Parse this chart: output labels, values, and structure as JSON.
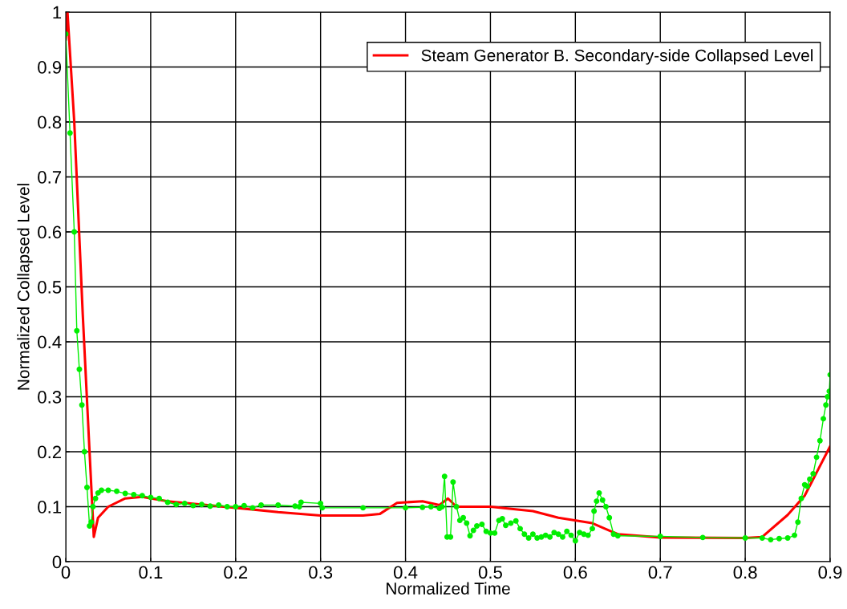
{
  "chart_data": {
    "type": "line",
    "xlabel": "Normalized Time",
    "ylabel": "Normalized Collapsed Level",
    "xlim": [
      0,
      0.9
    ],
    "ylim": [
      0,
      1
    ],
    "xticks": [
      0,
      0.1,
      0.2,
      0.3,
      0.4,
      0.5,
      0.6,
      0.7,
      0.8,
      0.9
    ],
    "yticks": [
      0,
      0.1,
      0.2,
      0.3,
      0.4,
      0.5,
      0.6,
      0.7,
      0.8,
      0.9,
      1
    ],
    "grid": true,
    "legend": "top right",
    "series": [
      {
        "name": "Steam Generator B. Secondary-side Collapsed Level",
        "color": "#ff0000",
        "marker": "none",
        "x": [
          0,
          0.002,
          0.01,
          0.02,
          0.028,
          0.033,
          0.038,
          0.05,
          0.07,
          0.09,
          0.12,
          0.2,
          0.25,
          0.3,
          0.35,
          0.37,
          0.39,
          0.42,
          0.44,
          0.45,
          0.46,
          0.5,
          0.55,
          0.58,
          0.62,
          0.65,
          0.7,
          0.8,
          0.82,
          0.85,
          0.87,
          0.9
        ],
        "values": [
          0.95,
          1.0,
          0.8,
          0.45,
          0.2,
          0.045,
          0.08,
          0.1,
          0.115,
          0.118,
          0.11,
          0.098,
          0.09,
          0.084,
          0.084,
          0.087,
          0.107,
          0.11,
          0.103,
          0.115,
          0.1,
          0.1,
          0.092,
          0.08,
          0.07,
          0.05,
          0.044,
          0.043,
          0.045,
          0.085,
          0.12,
          0.21
        ]
      },
      {
        "color": "#00ee00",
        "marker": "circle",
        "x": [
          0,
          0.005,
          0.01,
          0.013,
          0.016,
          0.019,
          0.022,
          0.025,
          0.028,
          0.03,
          0.032,
          0.035,
          0.038,
          0.042,
          0.05,
          0.06,
          0.07,
          0.08,
          0.09,
          0.1,
          0.11,
          0.12,
          0.13,
          0.14,
          0.15,
          0.16,
          0.17,
          0.18,
          0.19,
          0.2,
          0.21,
          0.22,
          0.23,
          0.25,
          0.27,
          0.275,
          0.277,
          0.3,
          0.302,
          0.35,
          0.4,
          0.42,
          0.43,
          0.44,
          0.443,
          0.446,
          0.449,
          0.453,
          0.456,
          0.46,
          0.464,
          0.468,
          0.472,
          0.476,
          0.48,
          0.484,
          0.49,
          0.495,
          0.5,
          0.505,
          0.51,
          0.514,
          0.518,
          0.524,
          0.53,
          0.535,
          0.54,
          0.545,
          0.55,
          0.555,
          0.56,
          0.565,
          0.57,
          0.575,
          0.58,
          0.585,
          0.59,
          0.595,
          0.6,
          0.605,
          0.61,
          0.615,
          0.62,
          0.622,
          0.625,
          0.628,
          0.632,
          0.636,
          0.64,
          0.645,
          0.65,
          0.7,
          0.75,
          0.8,
          0.82,
          0.83,
          0.84,
          0.85,
          0.858,
          0.862,
          0.866,
          0.87,
          0.873,
          0.876,
          0.88,
          0.884,
          0.888,
          0.892,
          0.895,
          0.897,
          0.899,
          0.9
        ],
        "values": [
          0.96,
          0.78,
          0.6,
          0.42,
          0.35,
          0.285,
          0.2,
          0.135,
          0.065,
          0.072,
          0.1,
          0.115,
          0.125,
          0.13,
          0.13,
          0.128,
          0.124,
          0.122,
          0.12,
          0.117,
          0.115,
          0.108,
          0.104,
          0.106,
          0.102,
          0.104,
          0.101,
          0.103,
          0.1,
          0.1,
          0.102,
          0.098,
          0.103,
          0.103,
          0.101,
          0.1,
          0.108,
          0.106,
          0.098,
          0.098,
          0.098,
          0.099,
          0.1,
          0.097,
          0.1,
          0.155,
          0.045,
          0.045,
          0.145,
          0.1,
          0.075,
          0.08,
          0.07,
          0.047,
          0.057,
          0.065,
          0.068,
          0.055,
          0.052,
          0.052,
          0.075,
          0.078,
          0.066,
          0.07,
          0.074,
          0.06,
          0.05,
          0.043,
          0.05,
          0.043,
          0.045,
          0.048,
          0.045,
          0.053,
          0.05,
          0.045,
          0.055,
          0.048,
          0.038,
          0.053,
          0.05,
          0.048,
          0.06,
          0.092,
          0.11,
          0.125,
          0.112,
          0.1,
          0.08,
          0.05,
          0.047,
          0.046,
          0.044,
          0.043,
          0.043,
          0.04,
          0.042,
          0.043,
          0.048,
          0.072,
          0.115,
          0.14,
          0.137,
          0.15,
          0.16,
          0.19,
          0.22,
          0.26,
          0.285,
          0.3,
          0.31,
          0.34
        ]
      }
    ]
  }
}
